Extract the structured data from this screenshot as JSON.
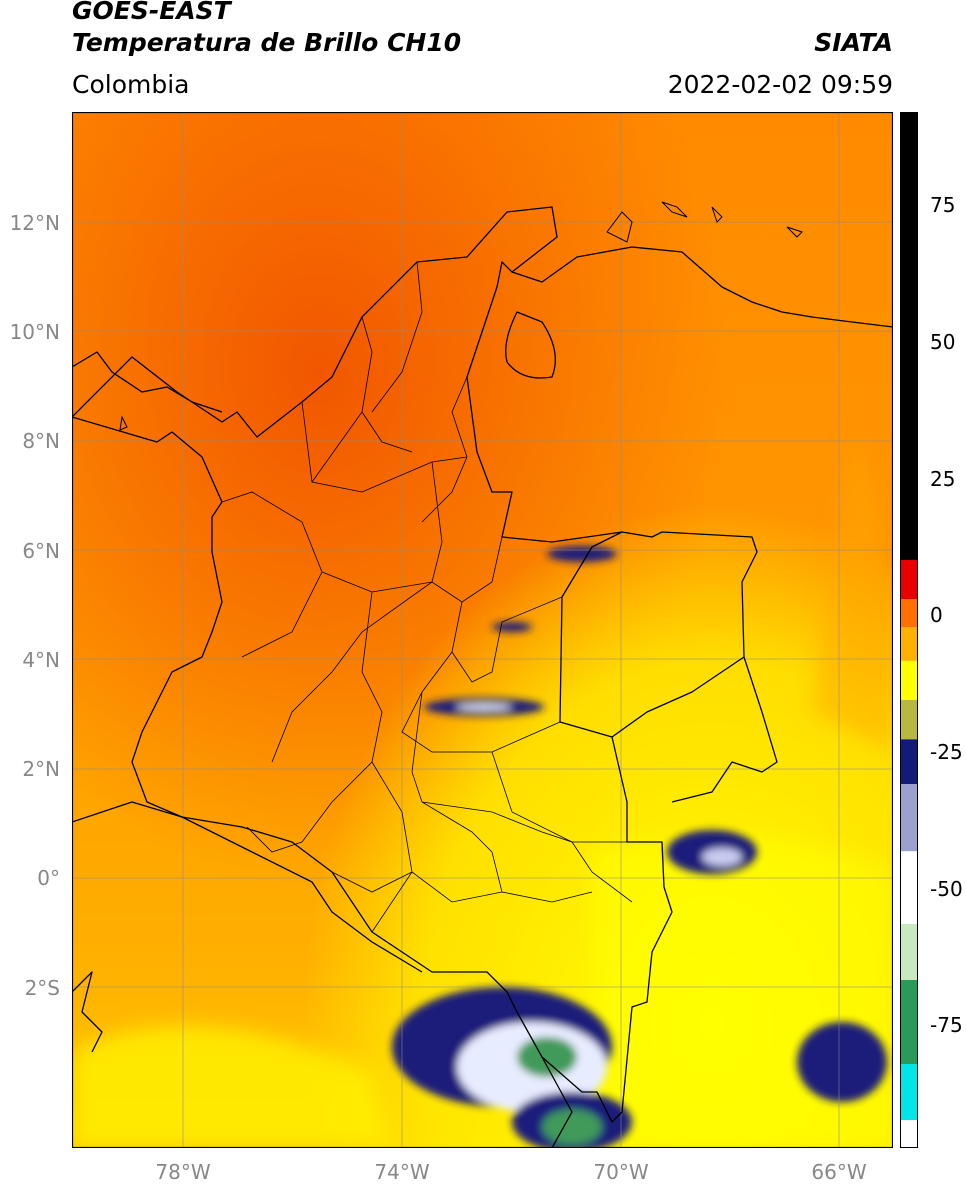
{
  "header": {
    "satellite": "GOES-EAST",
    "product": "Temperatura de Brillo CH10",
    "region": "Colombia",
    "organization": "SIATA",
    "timestamp": "2022-02-02 09:59"
  },
  "map": {
    "lon_range": [
      -80,
      -65
    ],
    "lat_range": [
      -5,
      14
    ],
    "lat_ticks": [
      "12°N",
      "10°N",
      "8°N",
      "6°N",
      "4°N",
      "2°N",
      "0°",
      "2°S"
    ],
    "lon_ticks": [
      "78°W",
      "74°W",
      "70°W",
      "66°W"
    ],
    "gridlines": true,
    "colors": {
      "warm_background": "#ff9500",
      "hot": "#f05a00",
      "cool": "#ffee00",
      "cold_blue": "#1a1f7a",
      "very_cold_green": "#3f9a5a",
      "border": "#000000"
    }
  },
  "colorbar": {
    "ticks": [
      "75",
      "50",
      "25",
      "0",
      "-25",
      "-50",
      "-75"
    ],
    "range": [
      -95,
      90
    ],
    "stops": [
      "#ffffff",
      "#00e5e5",
      "#2a9a5a",
      "#c8e8c0",
      "#ffffff",
      "#9aa0d0",
      "#141a78",
      "#b8b840",
      "#ffff00",
      "#ffb000",
      "#ff7000",
      "#e80000",
      "#000000"
    ]
  }
}
